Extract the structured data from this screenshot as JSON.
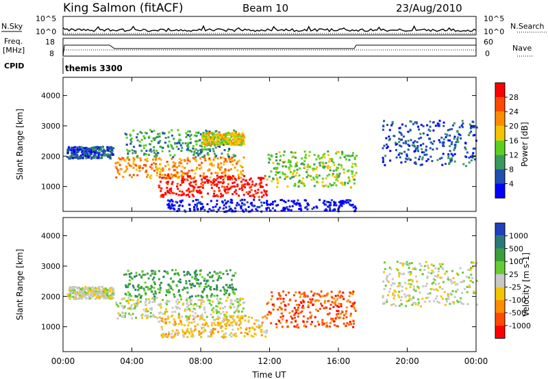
{
  "header": {
    "station": "King Salmon (fitACF)",
    "beam": "Beam 10",
    "date": "23/Aug/2010"
  },
  "top_panels": {
    "nsky_label": "N.Sky",
    "nsky_ticks": [
      "10^5",
      "10^0"
    ],
    "nsearch_label": "N.Search",
    "nsearch_ticks": [
      "10^5",
      "10^0"
    ],
    "freq_label": [
      "Freq.",
      "[MHz]"
    ],
    "freq_ticks": [
      "18",
      "8"
    ],
    "nave_label": "Nave",
    "nave_ticks": [
      "60",
      "0"
    ],
    "cpid_label": "CPID",
    "cpid_value": "themis 3300"
  },
  "chart_data": [
    {
      "type": "heatmap",
      "name": "power",
      "ylabel": "Slant Range [km]",
      "yticks": [
        1000,
        2000,
        3000,
        4000
      ],
      "ylim": [
        180,
        4600
      ],
      "colorbar": {
        "label": "Power [dB]",
        "ticks": [
          "28",
          "24",
          "20",
          "16",
          "12",
          "8",
          "4"
        ],
        "colors": [
          "#ff0000",
          "#ff4a00",
          "#ff8c00",
          "#f5c400",
          "#5bd11e",
          "#3a9a5a",
          "#1f4fb0",
          "#0000ff"
        ]
      },
      "regions": [
        {
          "t": [
            0.2,
            2.9
          ],
          "r": [
            1950,
            2350
          ],
          "level": 1
        },
        {
          "t": [
            3.0,
            10.5
          ],
          "r": [
            1300,
            2000
          ],
          "level": 5
        },
        {
          "t": [
            5.5,
            11.8
          ],
          "r": [
            680,
            1400
          ],
          "level": 7
        },
        {
          "t": [
            11.8,
            17.0
          ],
          "r": [
            1000,
            2200
          ],
          "level": 3
        },
        {
          "t": [
            3.5,
            10.0
          ],
          "r": [
            2000,
            2900
          ],
          "level": 2
        },
        {
          "t": [
            8.0,
            10.5
          ],
          "r": [
            2400,
            2800
          ],
          "level": 4
        },
        {
          "t": [
            18.5,
            24.0
          ],
          "r": [
            1700,
            3200
          ],
          "level": 1
        },
        {
          "t": [
            6.0,
            17.0
          ],
          "r": [
            200,
            600
          ],
          "level": 0
        }
      ]
    },
    {
      "type": "heatmap",
      "name": "velocity",
      "ylabel": "Slant Range [km]",
      "xlabel": "Time UT",
      "xticks": [
        "00:00",
        "04:00",
        "08:00",
        "12:00",
        "16:00",
        "20:00",
        "00:00"
      ],
      "yticks": [
        1000,
        2000,
        3000,
        4000
      ],
      "ylim": [
        180,
        4600
      ],
      "colorbar": {
        "label": "Velocity [m s-1]",
        "ticks": [
          "1000",
          "500",
          "100",
          "25",
          "-25",
          "-100",
          "-500",
          "-1000"
        ],
        "colors": [
          "#2040c0",
          "#2b7a7a",
          "#3aa03a",
          "#66cc33",
          "#c8c8c8",
          "#f5c400",
          "#ff8c00",
          "#ff4a00",
          "#ff0000"
        ]
      },
      "regions": [
        {
          "t": [
            0.2,
            2.9
          ],
          "r": [
            1950,
            2350
          ],
          "level": 4
        },
        {
          "t": [
            3.0,
            10.5
          ],
          "r": [
            1300,
            2000
          ],
          "level": 4
        },
        {
          "t": [
            5.5,
            11.8
          ],
          "r": [
            680,
            1400
          ],
          "level": 3
        },
        {
          "t": [
            11.8,
            17.0
          ],
          "r": [
            1000,
            2200
          ],
          "level": 1
        },
        {
          "t": [
            3.5,
            10.0
          ],
          "r": [
            2000,
            2900
          ],
          "level": 6
        },
        {
          "t": [
            18.5,
            24.0
          ],
          "r": [
            1700,
            3200
          ],
          "level": 4
        }
      ]
    }
  ]
}
